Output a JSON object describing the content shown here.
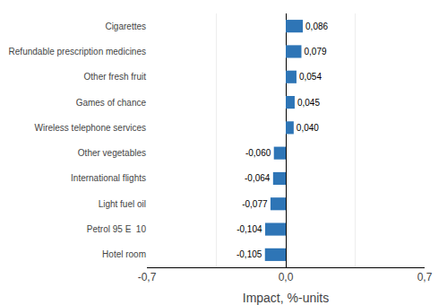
{
  "chart_data": {
    "type": "bar",
    "orientation": "horizontal",
    "categories": [
      "Hotel room",
      "Petrol 95 E  10",
      "Light fuel oil",
      "International flights",
      "Other vegetables",
      "Wireless telephone services",
      "Games of chance",
      "Other fresh fruit",
      "Refundable prescription medicines",
      "Cigarettes"
    ],
    "values": [
      -0.105,
      -0.104,
      -0.077,
      -0.064,
      -0.06,
      0.04,
      0.045,
      0.054,
      0.079,
      0.086
    ],
    "value_labels": [
      "-0,105",
      "-0,104",
      "-0,077",
      "-0,064",
      "-0,060",
      "0,040",
      "0,045",
      "0,054",
      "0,079",
      "0,086"
    ],
    "data_labels": true,
    "color": "#2e75b6",
    "xlabel": "Impact, %-units",
    "xlim": [
      -0.7,
      0.7
    ],
    "xticks": [
      {
        "value": -0.7,
        "label": "-0,7"
      },
      {
        "value": -0.35,
        "label": null
      },
      {
        "value": 0.0,
        "label": "0,0"
      },
      {
        "value": 0.35,
        "label": null
      },
      {
        "value": 0.7,
        "label": "0,7"
      }
    ],
    "grid": true
  }
}
